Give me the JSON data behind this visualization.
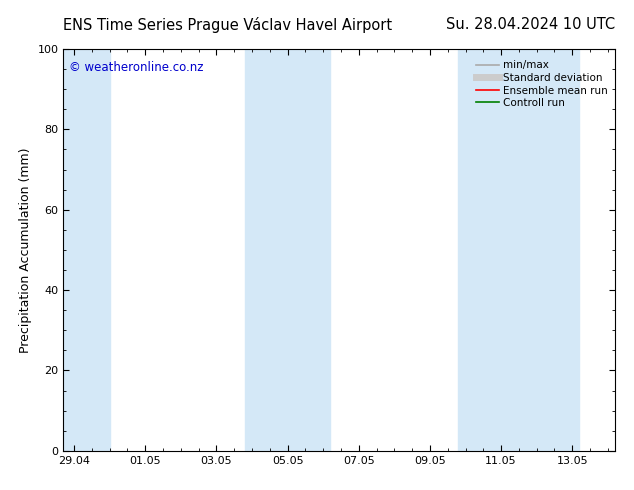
{
  "title": "ENS Time Series Prague Václav Havel Airport      Su. 28.04.2024 10 UTC",
  "title_left": "ENS Time Series Prague Václav Havel Airport",
  "title_right": "Su. 28.04.2024 10 UTC",
  "ylabel": "Precipitation Accumulation (mm)",
  "watermark": "© weatheronline.co.nz",
  "ylim": [
    0,
    100
  ],
  "yticks": [
    0,
    20,
    40,
    60,
    80,
    100
  ],
  "xtick_labels": [
    "29.04",
    "01.05",
    "03.05",
    "05.05",
    "07.05",
    "09.05",
    "11.05",
    "13.05"
  ],
  "xtick_positions": [
    0,
    2,
    4,
    6,
    8,
    10,
    12,
    14
  ],
  "xlim": [
    -0.3,
    15.2
  ],
  "shaded_regions": [
    {
      "x_start": -0.3,
      "x_end": 1.0,
      "color": "#d4e8f7",
      "alpha": 1.0
    },
    {
      "x_start": 4.8,
      "x_end": 7.2,
      "color": "#d4e8f7",
      "alpha": 1.0
    },
    {
      "x_start": 10.8,
      "x_end": 14.2,
      "color": "#d4e8f7",
      "alpha": 1.0
    }
  ],
  "legend_entries": [
    {
      "label": "min/max",
      "color": "#aaaaaa",
      "linewidth": 1.2,
      "linestyle": "-"
    },
    {
      "label": "Standard deviation",
      "color": "#cccccc",
      "linewidth": 5,
      "linestyle": "-"
    },
    {
      "label": "Ensemble mean run",
      "color": "#ff0000",
      "linewidth": 1.2,
      "linestyle": "-"
    },
    {
      "label": "Controll run",
      "color": "#008000",
      "linewidth": 1.2,
      "linestyle": "-"
    }
  ],
  "background_color": "#ffffff",
  "plot_bg_color": "#ffffff",
  "watermark_color": "#0000cc",
  "title_fontsize": 10.5,
  "ylabel_fontsize": 9,
  "tick_fontsize": 8,
  "legend_fontsize": 7.5,
  "watermark_fontsize": 8.5
}
